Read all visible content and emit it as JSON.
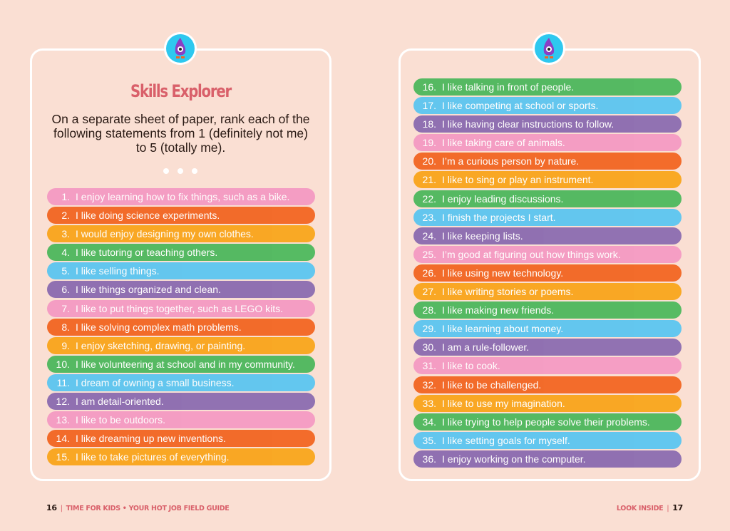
{
  "palette": [
    "#f49ac3",
    "#f26522",
    "#f9a51b",
    "#4db85d",
    "#5bc5f0",
    "#8b6bb0"
  ],
  "left_page": {
    "title": "Skills Explorer",
    "intro": "On a separate sheet of paper, rank each of the following statements from 1 (definitely not me) to 5 (totally me).",
    "items": [
      {
        "num": "1.",
        "text": "I enjoy learning how to fix things, such as a bike."
      },
      {
        "num": "2.",
        "text": "I like doing science experiments."
      },
      {
        "num": "3.",
        "text": "I would enjoy designing my own clothes."
      },
      {
        "num": "4.",
        "text": "I like tutoring or teaching others."
      },
      {
        "num": "5.",
        "text": "I like selling things."
      },
      {
        "num": "6.",
        "text": "I like things organized and clean."
      },
      {
        "num": "7.",
        "text": "I like to put things together, such as LEGO kits."
      },
      {
        "num": "8.",
        "text": "I like solving complex math problems."
      },
      {
        "num": "9.",
        "text": "I enjoy sketching, drawing, or painting."
      },
      {
        "num": "10.",
        "text": "I like volunteering at school and in my community."
      },
      {
        "num": "11.",
        "text": "I dream of owning a small business."
      },
      {
        "num": "12.",
        "text": "I am detail-oriented."
      },
      {
        "num": "13.",
        "text": "I like to be outdoors."
      },
      {
        "num": "14.",
        "text": "I like dreaming up new inventions."
      },
      {
        "num": "15.",
        "text": "I like to take pictures of everything."
      }
    ],
    "footer": {
      "page": "16",
      "text": "TIME FOR KIDS  •  YOUR HOT JOB FIELD GUIDE"
    }
  },
  "right_page": {
    "items": [
      {
        "num": "16.",
        "text": "I like talking in front of people."
      },
      {
        "num": "17.",
        "text": "I like competing at school or sports."
      },
      {
        "num": "18.",
        "text": "I like having clear instructions to follow."
      },
      {
        "num": "19.",
        "text": "I like taking care of animals."
      },
      {
        "num": "20.",
        "text": "I’m a curious person by nature."
      },
      {
        "num": "21.",
        "text": "I like to sing or play an instrument."
      },
      {
        "num": "22.",
        "text": "I enjoy leading discussions."
      },
      {
        "num": "23.",
        "text": "I finish the projects I start."
      },
      {
        "num": "24.",
        "text": "I like keeping lists."
      },
      {
        "num": "25.",
        "text": "I’m good at figuring out how things work."
      },
      {
        "num": "26.",
        "text": "I like using new technology."
      },
      {
        "num": "27.",
        "text": "I like writing stories or poems."
      },
      {
        "num": "28.",
        "text": "I like making new friends."
      },
      {
        "num": "29.",
        "text": "I like learning about money."
      },
      {
        "num": "30.",
        "text": "I am a rule-follower."
      },
      {
        "num": "31.",
        "text": "I like to cook."
      },
      {
        "num": "32.",
        "text": "I like to be challenged."
      },
      {
        "num": "33.",
        "text": "I like to use my imagination."
      },
      {
        "num": "34.",
        "text": "I like trying to help people solve their problems."
      },
      {
        "num": "35.",
        "text": "I like setting goals for myself."
      },
      {
        "num": "36.",
        "text": "I enjoy working on the computer."
      }
    ],
    "footer": {
      "page": "17",
      "text": "LOOK INSIDE"
    }
  },
  "icons": {
    "mascot": "purple-one-eyed-flame-mascot-icon"
  }
}
